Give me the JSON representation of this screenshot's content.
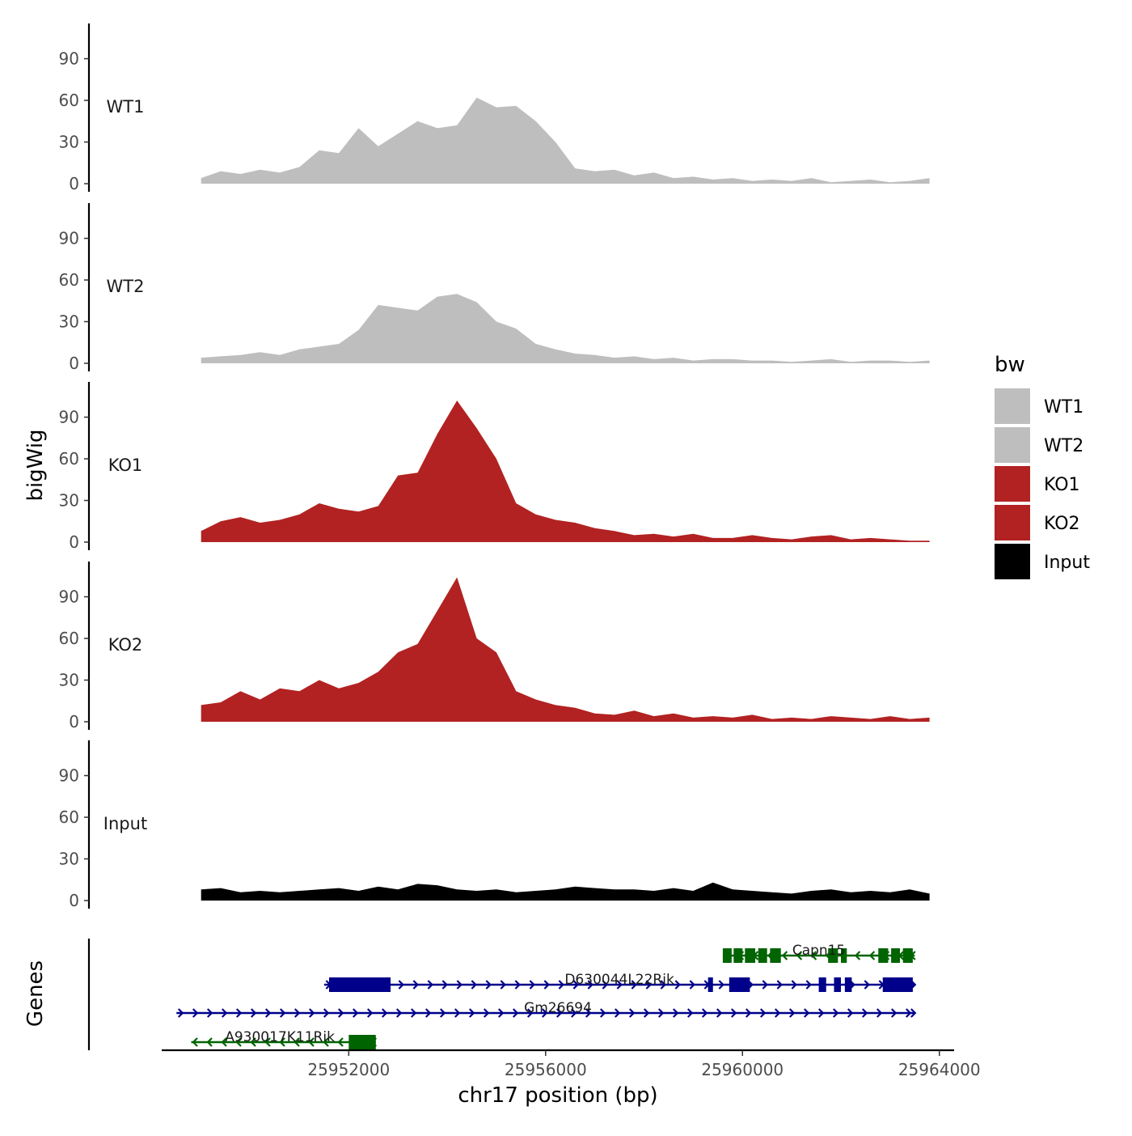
{
  "chart_data": {
    "type": "area",
    "title": "",
    "chromosome": "chr17",
    "xlabel": "chr17 position (bp)",
    "ylabel": "bigWig",
    "genes_axis_label": "Genes",
    "xlim": [
      25948200,
      25964300
    ],
    "data_range": [
      25949000,
      25963400
    ],
    "x_ticks": [
      25952000,
      25956000,
      25960000,
      25964000
    ],
    "x_tick_labels": [
      "25952000",
      "25956000",
      "25960000",
      "25964000"
    ],
    "ylim": [
      0,
      112
    ],
    "y_ticks": [
      0,
      30,
      60,
      90
    ],
    "y_tick_labels": [
      "0",
      "30",
      "60",
      "90"
    ],
    "legend": {
      "title": "bw",
      "entries": [
        {
          "label": "WT1",
          "color": "#BEBEBE"
        },
        {
          "label": "WT2",
          "color": "#BEBEBE"
        },
        {
          "label": "KO1",
          "color": "#B22222"
        },
        {
          "label": "KO2",
          "color": "#B22222"
        },
        {
          "label": "Input",
          "color": "#000000"
        }
      ]
    },
    "tracks": [
      {
        "name": "WT1",
        "color": "#BEBEBE",
        "step_bp": 400,
        "values": [
          4,
          9,
          7,
          10,
          8,
          12,
          24,
          22,
          40,
          27,
          36,
          45,
          40,
          42,
          62,
          55,
          56,
          45,
          30,
          11,
          9,
          10,
          6,
          8,
          4,
          5,
          3,
          4,
          2,
          3,
          2,
          4,
          1,
          2,
          3,
          1,
          2,
          4
        ]
      },
      {
        "name": "WT2",
        "color": "#BEBEBE",
        "step_bp": 400,
        "values": [
          4,
          5,
          6,
          8,
          6,
          10,
          12,
          14,
          24,
          42,
          40,
          38,
          48,
          50,
          44,
          30,
          25,
          14,
          10,
          7,
          6,
          4,
          5,
          3,
          4,
          2,
          3,
          3,
          2,
          2,
          1,
          2,
          3,
          1,
          2,
          2,
          1,
          2
        ]
      },
      {
        "name": "KO1",
        "color": "#B22222",
        "step_bp": 400,
        "values": [
          8,
          15,
          18,
          14,
          16,
          20,
          28,
          24,
          22,
          26,
          48,
          50,
          78,
          102,
          82,
          60,
          28,
          20,
          16,
          14,
          10,
          8,
          5,
          6,
          4,
          6,
          3,
          3,
          5,
          3,
          2,
          4,
          5,
          2,
          3,
          2,
          1,
          1
        ]
      },
      {
        "name": "KO2",
        "color": "#B22222",
        "step_bp": 400,
        "values": [
          12,
          14,
          22,
          16,
          24,
          22,
          30,
          24,
          28,
          36,
          50,
          56,
          80,
          104,
          60,
          50,
          22,
          16,
          12,
          10,
          6,
          5,
          8,
          4,
          6,
          3,
          4,
          3,
          5,
          2,
          3,
          2,
          4,
          3,
          2,
          4,
          2,
          3
        ]
      },
      {
        "name": "Input",
        "color": "#000000",
        "step_bp": 400,
        "values": [
          8,
          9,
          6,
          7,
          6,
          7,
          8,
          9,
          7,
          10,
          8,
          12,
          11,
          8,
          7,
          8,
          6,
          7,
          8,
          10,
          9,
          8,
          8,
          7,
          9,
          7,
          13,
          8,
          7,
          6,
          5,
          7,
          8,
          6,
          7,
          6,
          8,
          5
        ]
      }
    ],
    "genes": [
      {
        "name": "Capn15",
        "strand": "-",
        "color": "#006400",
        "start": 25959600,
        "end": 25963500,
        "row": 0,
        "exons": [
          [
            25959600,
            25959780
          ],
          [
            25959820,
            25960000
          ],
          [
            25960050,
            25960260
          ],
          [
            25960320,
            25960500
          ],
          [
            25960560,
            25960780
          ],
          [
            25961740,
            25961940
          ],
          [
            25962000,
            25962120
          ],
          [
            25962760,
            25962960
          ],
          [
            25963020,
            25963200
          ],
          [
            25963260,
            25963460
          ]
        ]
      },
      {
        "name": "D630044L22Rik",
        "strand": "+",
        "color": "#00008B",
        "start": 25951500,
        "end": 25963500,
        "row": 1,
        "exons": [
          [
            25951600,
            25952850
          ],
          [
            25959300,
            25959400
          ],
          [
            25959730,
            25960150
          ],
          [
            25961550,
            25961700
          ],
          [
            25961860,
            25962000
          ],
          [
            25962080,
            25962220
          ],
          [
            25962850,
            25963460
          ]
        ]
      },
      {
        "name": "Gm26694",
        "strand": "+",
        "color": "#00008B",
        "start": 25948500,
        "end": 25963500,
        "row": 2,
        "exons": []
      },
      {
        "name": "A930017K11Rik",
        "strand": "-",
        "color": "#006400",
        "start": 25948800,
        "end": 25952550,
        "row": 3,
        "exons": [
          [
            25952000,
            25952550
          ]
        ]
      }
    ]
  }
}
